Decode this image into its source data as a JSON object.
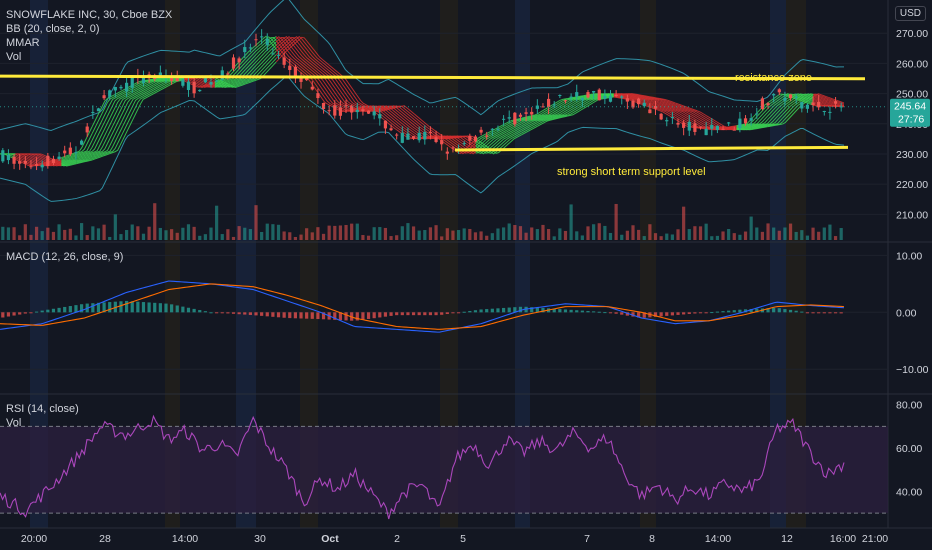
{
  "legend": {
    "symbol": "SNOWFLAKE INC, 30, Cboe BZX",
    "bb": "BB (20, close, 2, 0)",
    "mmar": "MMAR",
    "vol": "Vol"
  },
  "currency": "USD",
  "macd_label": "MACD (12, 26, close, 9)",
  "rsi_label": "RSI (14, close)",
  "rsi_vol_label": "Vol",
  "price_tag": "245.64",
  "countdown_tag": "27:76",
  "colors": {
    "bg": "#131722",
    "up": "#26a69a",
    "down": "#ef5350",
    "resistance_line": "#ffeb3b",
    "support_line": "#ffeb3b",
    "ribbon_up": "#39d353",
    "ribbon_down": "#d32f2f",
    "rsi_line": "#ab47bc",
    "rsi_band": "#2a1f3d",
    "bb_line": "#2f8fa3",
    "macd_line": "#2962ff",
    "signal_line": "#ff6d00",
    "hist_up": "#26a69a",
    "hist_down": "#ef5350"
  },
  "chart_data": [
    {
      "type": "candlestick",
      "title": "SNOWFLAKE INC, 30, Cboe BZX",
      "y_ticks": [
        210,
        220,
        230,
        240,
        250,
        260,
        270
      ],
      "y_tick_labels": [
        "210.00",
        "220.00",
        "230.00",
        "240.00",
        "250.00",
        "260.00",
        "270.00"
      ],
      "ylim": [
        201.5,
        281.0
      ],
      "x_tick_labels": [
        "20:00",
        "28",
        "14:00",
        "30",
        "Oct",
        "2",
        "5",
        "7",
        "8",
        "14:00",
        "12",
        "16:00",
        "21:00"
      ],
      "last_price": 245.64,
      "annotations": [
        {
          "text": "resistance zone",
          "level": 255.5
        },
        {
          "text": "strong short term support level",
          "level": 232.3
        }
      ],
      "horizontal_levels": [
        {
          "name": "resistance",
          "from": 254.5,
          "to": 255.5
        },
        {
          "name": "support",
          "from": 230.5,
          "to": 232.5
        }
      ],
      "price_path": [
        {
          "x": 0.0,
          "y": 230
        },
        {
          "x": 0.03,
          "y": 226
        },
        {
          "x": 0.06,
          "y": 228
        },
        {
          "x": 0.09,
          "y": 231
        },
        {
          "x": 0.12,
          "y": 248
        },
        {
          "x": 0.16,
          "y": 254
        },
        {
          "x": 0.2,
          "y": 256
        },
        {
          "x": 0.23,
          "y": 252
        },
        {
          "x": 0.26,
          "y": 255
        },
        {
          "x": 0.29,
          "y": 264
        },
        {
          "x": 0.31,
          "y": 269
        },
        {
          "x": 0.33,
          "y": 262
        },
        {
          "x": 0.36,
          "y": 255
        },
        {
          "x": 0.38,
          "y": 247
        },
        {
          "x": 0.4,
          "y": 244
        },
        {
          "x": 0.43,
          "y": 246
        },
        {
          "x": 0.46,
          "y": 239
        },
        {
          "x": 0.48,
          "y": 235
        },
        {
          "x": 0.51,
          "y": 236
        },
        {
          "x": 0.54,
          "y": 230
        },
        {
          "x": 0.56,
          "y": 235
        },
        {
          "x": 0.6,
          "y": 241
        },
        {
          "x": 0.63,
          "y": 243
        },
        {
          "x": 0.66,
          "y": 248
        },
        {
          "x": 0.7,
          "y": 250
        },
        {
          "x": 0.74,
          "y": 248
        },
        {
          "x": 0.78,
          "y": 244
        },
        {
          "x": 0.81,
          "y": 239
        },
        {
          "x": 0.84,
          "y": 238
        },
        {
          "x": 0.86,
          "y": 239
        },
        {
          "x": 0.88,
          "y": 240
        },
        {
          "x": 0.9,
          "y": 246
        },
        {
          "x": 0.92,
          "y": 250
        },
        {
          "x": 0.94,
          "y": 248
        },
        {
          "x": 0.96,
          "y": 246
        },
        {
          "x": 1.0,
          "y": 245.6
        }
      ]
    },
    {
      "type": "bar",
      "title": "MACD (12, 26, close, 9)",
      "y_ticks": [
        10,
        0,
        -10
      ],
      "y_tick_labels": [
        "10.00",
        "0.00",
        "−10.00"
      ],
      "ylim": [
        -14,
        12
      ],
      "macd_path": [
        {
          "x": 0.0,
          "y": -3
        },
        {
          "x": 0.05,
          "y": -2
        },
        {
          "x": 0.1,
          "y": 0.5
        },
        {
          "x": 0.15,
          "y": 3.5
        },
        {
          "x": 0.2,
          "y": 5.5
        },
        {
          "x": 0.25,
          "y": 5
        },
        {
          "x": 0.3,
          "y": 4
        },
        {
          "x": 0.34,
          "y": 2
        },
        {
          "x": 0.38,
          "y": 0
        },
        {
          "x": 0.42,
          "y": -2.5
        },
        {
          "x": 0.47,
          "y": -3
        },
        {
          "x": 0.52,
          "y": -3.5
        },
        {
          "x": 0.57,
          "y": -2
        },
        {
          "x": 0.62,
          "y": 0.5
        },
        {
          "x": 0.67,
          "y": 1.5
        },
        {
          "x": 0.72,
          "y": 1
        },
        {
          "x": 0.76,
          "y": -1
        },
        {
          "x": 0.8,
          "y": -2
        },
        {
          "x": 0.84,
          "y": -1.5
        },
        {
          "x": 0.88,
          "y": 0
        },
        {
          "x": 0.92,
          "y": 1.8
        },
        {
          "x": 0.96,
          "y": 1.2
        },
        {
          "x": 1.0,
          "y": 0.8
        }
      ],
      "signal_path": [
        {
          "x": 0.0,
          "y": -2
        },
        {
          "x": 0.05,
          "y": -2.3
        },
        {
          "x": 0.1,
          "y": -1
        },
        {
          "x": 0.15,
          "y": 1.5
        },
        {
          "x": 0.2,
          "y": 4
        },
        {
          "x": 0.25,
          "y": 5
        },
        {
          "x": 0.3,
          "y": 4.5
        },
        {
          "x": 0.34,
          "y": 3
        },
        {
          "x": 0.38,
          "y": 1.2
        },
        {
          "x": 0.42,
          "y": -1
        },
        {
          "x": 0.47,
          "y": -2.5
        },
        {
          "x": 0.52,
          "y": -3
        },
        {
          "x": 0.57,
          "y": -2.5
        },
        {
          "x": 0.62,
          "y": -0.5
        },
        {
          "x": 0.67,
          "y": 1
        },
        {
          "x": 0.72,
          "y": 1
        },
        {
          "x": 0.76,
          "y": 0
        },
        {
          "x": 0.8,
          "y": -1.5
        },
        {
          "x": 0.84,
          "y": -1.5
        },
        {
          "x": 0.88,
          "y": -0.5
        },
        {
          "x": 0.92,
          "y": 1
        },
        {
          "x": 0.96,
          "y": 1.3
        },
        {
          "x": 1.0,
          "y": 1
        }
      ]
    },
    {
      "type": "line",
      "title": "RSI (14, close)",
      "y_ticks": [
        80,
        60,
        40
      ],
      "y_tick_labels": [
        "80.00",
        "60.00",
        "40.00"
      ],
      "ylim": [
        25,
        84
      ],
      "bands": [
        30,
        70
      ],
      "rsi_path": [
        {
          "x": 0.0,
          "y": 38
        },
        {
          "x": 0.03,
          "y": 31
        },
        {
          "x": 0.06,
          "y": 42
        },
        {
          "x": 0.09,
          "y": 55
        },
        {
          "x": 0.12,
          "y": 70
        },
        {
          "x": 0.15,
          "y": 66
        },
        {
          "x": 0.18,
          "y": 73
        },
        {
          "x": 0.2,
          "y": 64
        },
        {
          "x": 0.22,
          "y": 68
        },
        {
          "x": 0.24,
          "y": 59
        },
        {
          "x": 0.26,
          "y": 62
        },
        {
          "x": 0.28,
          "y": 56
        },
        {
          "x": 0.3,
          "y": 73
        },
        {
          "x": 0.32,
          "y": 60
        },
        {
          "x": 0.34,
          "y": 50
        },
        {
          "x": 0.36,
          "y": 35
        },
        {
          "x": 0.38,
          "y": 46
        },
        {
          "x": 0.4,
          "y": 41
        },
        {
          "x": 0.42,
          "y": 48
        },
        {
          "x": 0.44,
          "y": 39
        },
        {
          "x": 0.46,
          "y": 30
        },
        {
          "x": 0.48,
          "y": 40
        },
        {
          "x": 0.5,
          "y": 43
        },
        {
          "x": 0.52,
          "y": 31
        },
        {
          "x": 0.54,
          "y": 55
        },
        {
          "x": 0.56,
          "y": 62
        },
        {
          "x": 0.58,
          "y": 52
        },
        {
          "x": 0.6,
          "y": 64
        },
        {
          "x": 0.62,
          "y": 58
        },
        {
          "x": 0.64,
          "y": 63
        },
        {
          "x": 0.66,
          "y": 59
        },
        {
          "x": 0.68,
          "y": 67
        },
        {
          "x": 0.7,
          "y": 60
        },
        {
          "x": 0.72,
          "y": 65
        },
        {
          "x": 0.74,
          "y": 48
        },
        {
          "x": 0.76,
          "y": 38
        },
        {
          "x": 0.78,
          "y": 43
        },
        {
          "x": 0.8,
          "y": 36
        },
        {
          "x": 0.82,
          "y": 42
        },
        {
          "x": 0.84,
          "y": 38
        },
        {
          "x": 0.86,
          "y": 44
        },
        {
          "x": 0.88,
          "y": 40
        },
        {
          "x": 0.9,
          "y": 45
        },
        {
          "x": 0.92,
          "y": 69
        },
        {
          "x": 0.94,
          "y": 71
        },
        {
          "x": 0.96,
          "y": 58
        },
        {
          "x": 0.98,
          "y": 48
        },
        {
          "x": 1.0,
          "y": 53
        }
      ]
    }
  ]
}
